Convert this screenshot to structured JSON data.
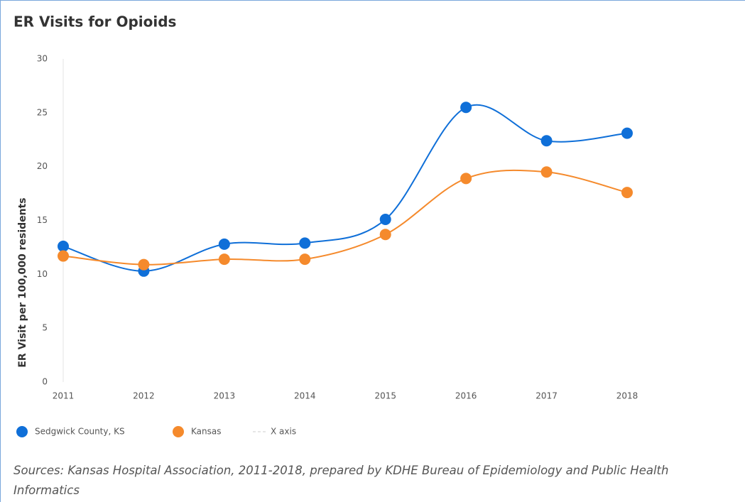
{
  "chart_data": {
    "type": "line",
    "title": "ER Visits for Opioids",
    "y_label": "ER Visit per 100,000 residents",
    "categories": [
      "2011",
      "2012",
      "2013",
      "2014",
      "2015",
      "2016",
      "2017",
      "2018"
    ],
    "series": [
      {
        "name": "Sedgwick County, KS",
        "color": "#0f6fd8",
        "values": [
          12.6,
          10.3,
          12.8,
          12.9,
          15.1,
          25.5,
          22.4,
          23.1
        ]
      },
      {
        "name": "Kansas",
        "color": "#f58a2c",
        "values": [
          11.7,
          10.9,
          11.4,
          11.4,
          13.7,
          18.9,
          19.5,
          17.6
        ]
      }
    ],
    "x_axis_legend": "X axis",
    "ylim": [
      0,
      30
    ],
    "yticks": [
      0,
      5,
      10,
      15,
      20,
      25,
      30
    ],
    "grid": false,
    "legend": "bottom",
    "source": "Sources: Kansas Hospital Association, 2011-2018, prepared by KDHE Bureau of Epidemiology and Public Health Informatics"
  }
}
